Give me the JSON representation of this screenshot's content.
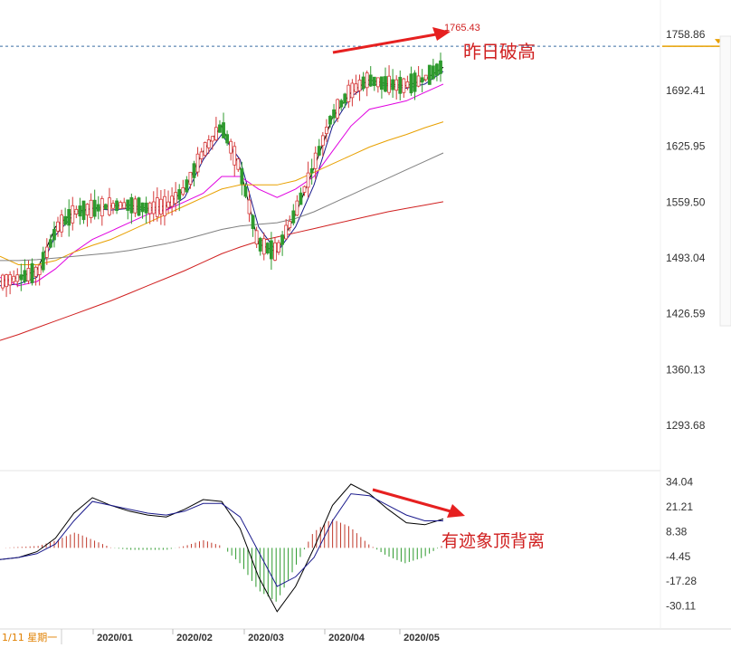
{
  "chart_data": [
    {
      "type": "candlestick",
      "panel": "price",
      "y_ticks": [
        "1758.86",
        "1692.41",
        "1625.95",
        "1559.50",
        "1493.04",
        "1426.59",
        "1360.13",
        "1293.68"
      ],
      "ylim": [
        1240,
        1800
      ],
      "x_ticks": [
        "2020/01",
        "2020/02",
        "2020/03",
        "2020/04",
        "2020/05"
      ],
      "date_label": "1/11 星期一",
      "high_label": "1765.43",
      "annotation": "昨日破高",
      "current_price": 1745,
      "moving_averages": [
        {
          "color": "#000000",
          "values": [
            1465,
            1470,
            1478,
            1530,
            1548,
            1552,
            1555,
            1556,
            1552,
            1555,
            1575,
            1620,
            1650,
            1600,
            1510,
            1500,
            1545,
            1600,
            1660,
            1690,
            1705,
            1700,
            1698,
            1705,
            1720
          ]
        },
        {
          "color": "#1a1a8c",
          "values": [
            1460,
            1462,
            1470,
            1520,
            1545,
            1552,
            1550,
            1552,
            1550,
            1550,
            1565,
            1610,
            1640,
            1610,
            1530,
            1500,
            1530,
            1580,
            1650,
            1685,
            1700,
            1698,
            1695,
            1700,
            1715
          ]
        },
        {
          "color": "#e000e0",
          "values": [
            1470,
            1460,
            1465,
            1480,
            1500,
            1515,
            1525,
            1535,
            1545,
            1550,
            1560,
            1570,
            1590,
            1590,
            1575,
            1565,
            1575,
            1590,
            1620,
            1650,
            1670,
            1675,
            1680,
            1690,
            1700
          ]
        },
        {
          "color": "#e8a000",
          "values": [
            1495,
            1485,
            1485,
            1490,
            1500,
            1508,
            1515,
            1525,
            1535,
            1545,
            1555,
            1565,
            1575,
            1580,
            1580,
            1580,
            1585,
            1595,
            1605,
            1615,
            1625,
            1633,
            1640,
            1648,
            1655
          ]
        },
        {
          "color": "#808080",
          "values": [
            1490,
            1490,
            1491,
            1493,
            1495,
            1497,
            1499,
            1502,
            1506,
            1510,
            1515,
            1521,
            1527,
            1531,
            1533,
            1535,
            1540,
            1548,
            1558,
            1568,
            1578,
            1588,
            1598,
            1608,
            1618
          ]
        },
        {
          "color": "#d02020",
          "values": [
            1395,
            1402,
            1410,
            1418,
            1426,
            1434,
            1442,
            1451,
            1460,
            1469,
            1478,
            1488,
            1498,
            1506,
            1513,
            1518,
            1523,
            1528,
            1533,
            1538,
            1543,
            1548,
            1552,
            1556,
            1560
          ]
        }
      ]
    },
    {
      "type": "bar-line",
      "panel": "macd",
      "y_ticks": [
        "34.04",
        "21.21",
        "8.38",
        "-4.45",
        "-17.28",
        "-30.11"
      ],
      "ylim": [
        -42,
        40
      ],
      "annotation": "有迹象顶背离",
      "lines": [
        {
          "color": "#000000",
          "values": [
            -6,
            -5,
            -2,
            5,
            18,
            26,
            22,
            19,
            17,
            16,
            20,
            25,
            24,
            10,
            -15,
            -33,
            -20,
            0,
            22,
            33,
            28,
            20,
            13,
            12,
            15
          ]
        },
        {
          "color": "#1a1a8c",
          "values": [
            -6,
            -5,
            -3,
            2,
            14,
            24,
            22,
            20,
            18,
            17,
            19,
            23,
            23,
            16,
            -2,
            -20,
            -15,
            -5,
            14,
            28,
            27,
            22,
            17,
            14,
            14
          ]
        }
      ],
      "histogram": [
        0,
        0.5,
        1,
        4,
        8,
        4,
        0,
        -1,
        -1,
        -1,
        1,
        4,
        1,
        -8,
        -22,
        -28,
        -10,
        8,
        15,
        11,
        2,
        -4,
        -8,
        -5,
        1
      ]
    }
  ]
}
